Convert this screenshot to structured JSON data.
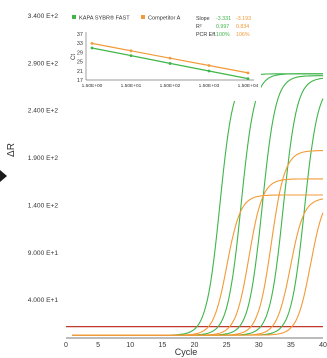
{
  "chart_data": {
    "type": "line",
    "xlabel": "Cycle",
    "ylabel": "ΔR",
    "xlim": [
      0,
      40
    ],
    "ylim": [
      0,
      34000
    ],
    "x_ticks": [
      0,
      5,
      10,
      15,
      20,
      25,
      30,
      35,
      40
    ],
    "y_ticks": [
      {
        "value": 4000,
        "label": "4.000 E+1"
      },
      {
        "value": 9000,
        "label": "9.000 E+1"
      },
      {
        "value": 14000,
        "label": "1.400 E+2"
      },
      {
        "value": 19000,
        "label": "1.900 E+2"
      },
      {
        "value": 24000,
        "label": "2.400 E+2"
      },
      {
        "value": 29000,
        "label": "2.900 E+2"
      },
      {
        "value": 34000,
        "label": "3.400 E+2"
      }
    ],
    "threshold": {
      "value": 1200,
      "color": "#c0392b"
    },
    "grid": false,
    "legend_position": "top-left (inset)",
    "series": [
      {
        "name": "KAPA SYBR® FAST",
        "color": "#3fb54a",
        "curves": [
          {
            "ct": 20.7,
            "plateau": 27600
          },
          {
            "ct": 24.0,
            "plateau": 27600
          },
          {
            "ct": 27.3,
            "plateau": 27400
          },
          {
            "ct": 30.6,
            "plateau": 27200
          },
          {
            "ct": 33.9,
            "plateau": 26600
          }
        ]
      },
      {
        "name": "Competitor A",
        "color": "#f29a38",
        "curves": [
          {
            "ct": 22.5,
            "plateau": 14800
          },
          {
            "ct": 25.8,
            "plateau": 16500
          },
          {
            "ct": 29.1,
            "plateau": 19500
          },
          {
            "ct": 32.4,
            "plateau": 14500
          },
          {
            "ct": 35.5,
            "plateau": 15000
          }
        ]
      }
    ],
    "inset": {
      "type": "line",
      "ylabel": "Ct",
      "y_ticks": [
        17,
        21,
        25,
        29,
        33,
        37
      ],
      "ylim": [
        17,
        37
      ],
      "x_tick_labels": [
        "1.50E+00",
        "1.50E+01",
        "1.50E+02",
        "1.50E+03",
        "1.50E+04"
      ],
      "series": [
        {
          "name": "KAPA SYBR® FAST",
          "color": "#3fb54a",
          "values": [
            30.9,
            27.6,
            24.2,
            20.9,
            17.6
          ]
        },
        {
          "name": "Competitor A",
          "color": "#f29a38",
          "values": [
            32.9,
            29.7,
            26.5,
            23.3,
            20.1
          ]
        }
      ],
      "stats": {
        "headers": [
          "Slope",
          "R²",
          "PCR Eff."
        ],
        "kapa": [
          "-3.331",
          "0.997",
          "100%"
        ],
        "competitor": [
          "-3.193",
          "0.834",
          "106%"
        ]
      }
    }
  }
}
